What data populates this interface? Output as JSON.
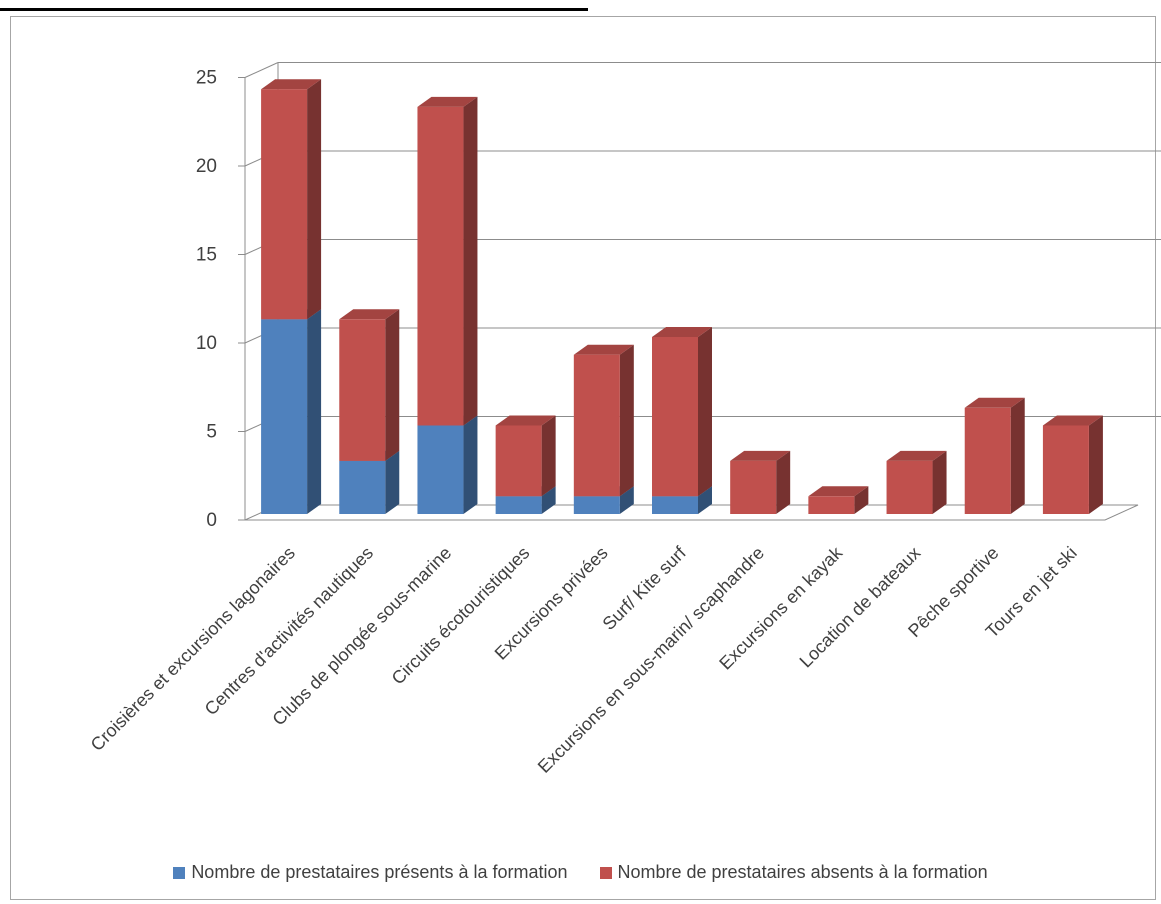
{
  "chart_data": {
    "type": "bar",
    "stacked": true,
    "three_d": true,
    "categories": [
      "Croisières et excursions lagonaires",
      "Centres d'activités nautiques",
      "Clubs de plongée sous-marine",
      "Circuits écotouristiques",
      "Excursions privées",
      "Surf/ Kite surf",
      "Excursions en sous-marin/ scaphandre",
      "Excursions en kayak",
      "Location de bateaux",
      "Pêche sportive",
      "Tours en jet ski"
    ],
    "series": [
      {
        "name": "Nombre de prestataires présents à la formation",
        "color": "#4f81bd",
        "values": [
          11,
          3,
          5,
          1,
          1,
          1,
          0,
          0,
          0,
          0,
          0
        ]
      },
      {
        "name": "Nombre de prestataires absents à la formation",
        "color": "#c0504d",
        "values": [
          13,
          8,
          18,
          4,
          8,
          9,
          3,
          1,
          3,
          6,
          5
        ]
      }
    ],
    "ylim": [
      0,
      25
    ],
    "yticks": [
      0,
      5,
      10,
      15,
      20,
      25
    ],
    "grid": true,
    "legend_position": "bottom"
  }
}
